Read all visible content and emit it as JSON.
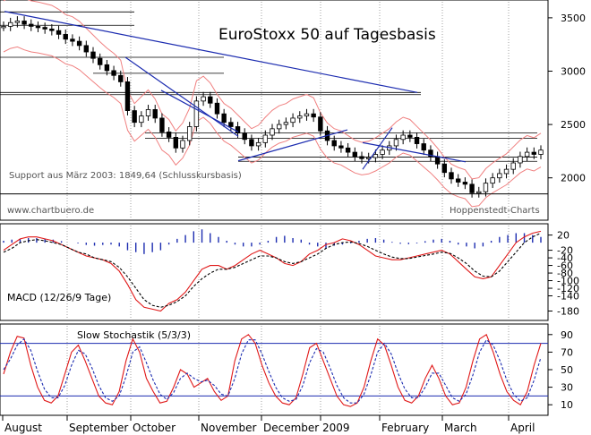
{
  "chart_data": [
    {
      "type": "candlestick",
      "title": "EuroStoxx 50 auf Tagesbasis",
      "ylim": [
        1620,
        3650
      ],
      "y_ticks": [
        2000,
        2500,
        3000,
        3500
      ],
      "annotations": {
        "support": "Support aus März 2003: 1849,64 (Schlusskursbasis)",
        "source_left": "www.chartbuero.de",
        "source_right": "Hoppenstedt-Charts"
      },
      "support_level": 1849.64,
      "close_series": [
        3420,
        3455,
        3470,
        3440,
        3420,
        3410,
        3395,
        3380,
        3345,
        3300,
        3280,
        3240,
        3180,
        3120,
        3060,
        3005,
        2960,
        2900,
        2630,
        2520,
        2580,
        2640,
        2560,
        2430,
        2380,
        2280,
        2350,
        2480,
        2720,
        2760,
        2700,
        2600,
        2520,
        2480,
        2420,
        2360,
        2300,
        2330,
        2400,
        2460,
        2500,
        2520,
        2560,
        2580,
        2600,
        2570,
        2440,
        2350,
        2300,
        2280,
        2240,
        2200,
        2180,
        2190,
        2220,
        2260,
        2300,
        2360,
        2400,
        2380,
        2320,
        2260,
        2200,
        2130,
        2050,
        1990,
        1960,
        1940,
        1860,
        1870,
        1950,
        2000,
        2040,
        2080,
        2140,
        2200,
        2240,
        2220,
        2260
      ],
      "envelope_pct": 0.07,
      "trendlines": [
        {
          "from": [
            "Aug",
            3560
          ],
          "to": [
            "Mar",
            2800
          ],
          "color": "#1c2cb0"
        },
        {
          "from": [
            "Sep-end",
            3130
          ],
          "to": [
            "Nov",
            2390
          ],
          "color": "#1c2cb0"
        },
        {
          "from": [
            "Oct",
            2820
          ],
          "to": [
            "Nov",
            2430
          ],
          "color": "#1c2cb0"
        },
        {
          "from": [
            "Nov",
            2160
          ],
          "to": [
            "Dec",
            2450
          ],
          "color": "#1c2cb0"
        },
        {
          "from": [
            "Jan",
            2470
          ],
          "to": [
            "Feb",
            2080
          ],
          "color": "#1c2cb0"
        },
        {
          "from": [
            "Feb",
            2330
          ],
          "to": [
            "Feb-end",
            2150
          ],
          "color": "#1c2cb0"
        }
      ],
      "horizontal_bands": [
        3555,
        3430,
        3130,
        2980,
        2800,
        2780,
        2420,
        2370,
        2195,
        2155
      ]
    },
    {
      "type": "line",
      "title": "MACD (12/26/9 Tage)",
      "ylim": [
        -200,
        45
      ],
      "y_ticks": [
        20,
        -20,
        -40,
        -60,
        -80,
        -100,
        -120,
        -140,
        -180
      ],
      "series": [
        {
          "style": "solid",
          "values": [
            -20,
            -5,
            10,
            15,
            15,
            10,
            5,
            -5,
            -15,
            -25,
            -35,
            -40,
            -45,
            -55,
            -75,
            -110,
            -150,
            -170,
            -175,
            -180,
            -160,
            -150,
            -130,
            -100,
            -70,
            -60,
            -60,
            -70,
            -60,
            -45,
            -30,
            -20,
            -30,
            -40,
            -55,
            -60,
            -50,
            -30,
            -20,
            -5,
            0,
            10,
            5,
            -5,
            -20,
            -35,
            -40,
            -45,
            -45,
            -40,
            -35,
            -30,
            -25,
            -20,
            -30,
            -50,
            -70,
            -90,
            -95,
            -90,
            -60,
            -30,
            0,
            15,
            25,
            30
          ]
        },
        {
          "style": "dashed",
          "values": [
            -25,
            -15,
            0,
            5,
            8,
            5,
            0,
            -5,
            -15,
            -25,
            -30,
            -40,
            -45,
            -50,
            -65,
            -90,
            -120,
            -150,
            -165,
            -170,
            -165,
            -155,
            -140,
            -115,
            -95,
            -80,
            -70,
            -70,
            -65,
            -55,
            -45,
            -35,
            -35,
            -40,
            -50,
            -55,
            -50,
            -40,
            -30,
            -15,
            -5,
            0,
            2,
            -2,
            -10,
            -20,
            -30,
            -38,
            -42,
            -42,
            -38,
            -34,
            -30,
            -25,
            -28,
            -40,
            -55,
            -75,
            -88,
            -90,
            -75,
            -50,
            -25,
            0,
            15,
            25
          ]
        }
      ],
      "histogram": [
        5,
        8,
        10,
        12,
        12,
        10,
        8,
        4,
        0,
        -2,
        -6,
        -8,
        -6,
        -5,
        -10,
        -20,
        -25,
        -30,
        -25,
        -20,
        -5,
        10,
        20,
        30,
        35,
        25,
        15,
        5,
        -5,
        -10,
        -10,
        -5,
        5,
        15,
        18,
        12,
        8,
        -5,
        -10,
        -15,
        -8,
        -5,
        -2,
        5,
        10,
        12,
        8,
        2,
        -3,
        -4,
        -2,
        4,
        8,
        10,
        5,
        -5,
        -10,
        -15,
        -10,
        5,
        15,
        20,
        25,
        25,
        20,
        15
      ]
    },
    {
      "type": "line",
      "title": "Slow Stochastik (5/3/3)",
      "ylim": [
        0,
        100
      ],
      "y_ticks": [
        10,
        30,
        50,
        70,
        90
      ],
      "levels": [
        20,
        80
      ],
      "series": [
        {
          "style": "solid",
          "values": [
            45,
            70,
            88,
            86,
            55,
            30,
            15,
            12,
            20,
            45,
            70,
            78,
            60,
            40,
            20,
            12,
            10,
            25,
            60,
            85,
            70,
            40,
            25,
            12,
            14,
            30,
            50,
            45,
            30,
            35,
            40,
            25,
            15,
            20,
            60,
            85,
            90,
            80,
            55,
            35,
            20,
            12,
            10,
            18,
            45,
            75,
            80,
            60,
            40,
            20,
            10,
            8,
            12,
            30,
            60,
            85,
            78,
            55,
            30,
            15,
            12,
            20,
            40,
            55,
            40,
            20,
            10,
            12,
            30,
            60,
            85,
            90,
            70,
            45,
            25,
            15,
            10,
            25,
            55,
            80
          ]
        },
        {
          "style": "dashed",
          "values": [
            50,
            62,
            78,
            85,
            72,
            48,
            28,
            18,
            18,
            32,
            55,
            72,
            68,
            52,
            32,
            18,
            14,
            20,
            42,
            70,
            76,
            58,
            38,
            22,
            16,
            24,
            40,
            46,
            40,
            36,
            38,
            32,
            22,
            20,
            40,
            68,
            84,
            84,
            68,
            48,
            30,
            18,
            14,
            16,
            32,
            58,
            74,
            70,
            52,
            32,
            18,
            12,
            12,
            22,
            44,
            70,
            80,
            68,
            46,
            28,
            18,
            18,
            30,
            46,
            46,
            32,
            18,
            14,
            22,
            44,
            70,
            84,
            78,
            60,
            38,
            22,
            14,
            18,
            38,
            64
          ]
        }
      ]
    }
  ],
  "x_axis": {
    "labels": [
      "August",
      "September",
      "October",
      "November",
      "December",
      "2009",
      "February",
      "March",
      "April"
    ]
  }
}
